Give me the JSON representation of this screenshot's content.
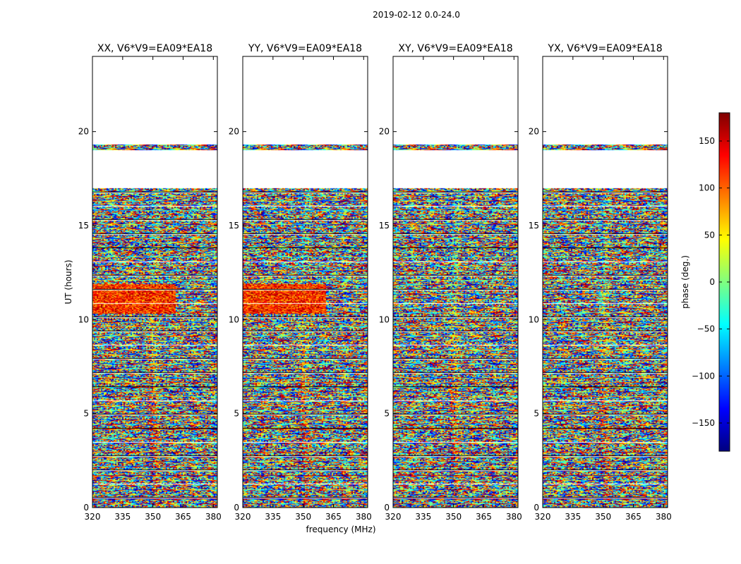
{
  "suptitle": "2019-02-12 0.0-24.0",
  "chart_data": {
    "type": "heatmap",
    "title": "2019-02-12 0.0-24.0",
    "xlabel": "frequency (MHz)",
    "ylabel": "UT (hours)",
    "xlim": [
      320,
      382
    ],
    "ylim": [
      0,
      24
    ],
    "xticks": [
      320,
      335,
      350,
      365,
      380
    ],
    "yticks": [
      0,
      5,
      10,
      15,
      20
    ],
    "panels": [
      {
        "title": "XX, V6*V9=EA09*EA18",
        "corr": "XX"
      },
      {
        "title": "YY, V6*V9=EA09*EA18",
        "corr": "YY"
      },
      {
        "title": "XY, V6*V9=EA09*EA18",
        "corr": "XY"
      },
      {
        "title": "YX, V6*V9=EA09*EA18",
        "corr": "YX"
      }
    ],
    "colorbar": {
      "label": "phase (deg.)",
      "range": [
        -180,
        180
      ],
      "ticks": [
        -150,
        -100,
        -50,
        0,
        50,
        100,
        150
      ],
      "colormap": "jet"
    },
    "data_gaps_hours": [
      [
        17.0,
        19.0
      ],
      [
        19.3,
        24.0
      ]
    ],
    "coherent_block": {
      "ut_range": [
        10.3,
        11.9
      ],
      "parallel_hand_phase_deg": 120,
      "freq_end_mhz": {
        "XX": 361,
        "YY": 361
      }
    }
  }
}
